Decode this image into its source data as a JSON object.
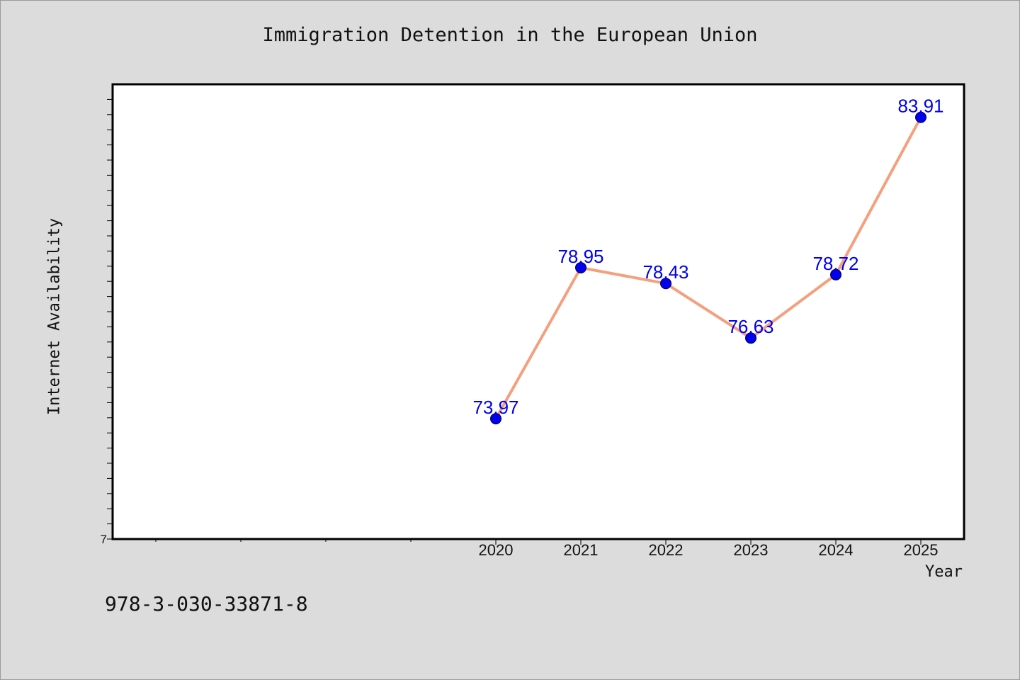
{
  "chart_data": {
    "type": "line",
    "title": "Immigration Detention in the European Union",
    "xlabel": "Year",
    "ylabel": "Internet Availability",
    "x": [
      "2020",
      "2021",
      "2022",
      "2023",
      "2024",
      "2025"
    ],
    "series": [
      {
        "values": [
          73.97,
          78.95,
          78.43,
          76.63,
          78.72,
          83.91
        ],
        "data_labels": [
          "73.97",
          "78.95",
          "78.43",
          "76.63",
          "78.72",
          "83.91"
        ]
      }
    ],
    "ylim": [
      70,
      85
    ],
    "y_tick_labels": [
      "7"
    ],
    "grid": false,
    "line_color": "#f4a07f",
    "marker_color": "#0000ee",
    "label_color": "#0000ee"
  },
  "footer": {
    "isbn": "978-3-030-33871-8"
  }
}
